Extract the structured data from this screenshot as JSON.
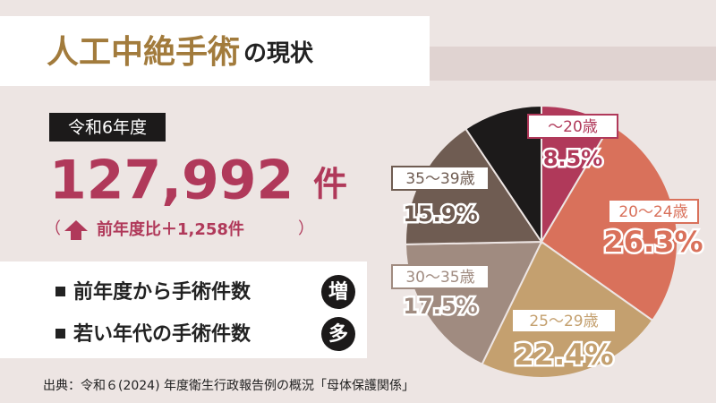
{
  "header": {
    "title": "人工中絶手術",
    "title_suffix": "の現状"
  },
  "summary": {
    "year": "令和6年度",
    "count": "127,992",
    "unit": "件",
    "change_open": "（",
    "change": "前年度比＋1,258件",
    "change_close": "）"
  },
  "bullets": [
    {
      "text": "前年度から手術件数",
      "badge": "増"
    },
    {
      "text": "若い年代の手術件数",
      "badge": "多"
    }
  ],
  "source": "出典：令和６(2024) 年度衛生行政報告例の概況「母体保護関係」",
  "chart_data": {
    "type": "pie",
    "categories": [
      "～20歳",
      "20～24歳",
      "25～29歳",
      "30～35歳",
      "35～39歳",
      null
    ],
    "values": [
      8.5,
      26.3,
      22.4,
      17.5,
      15.9,
      9.4
    ],
    "value_labels": [
      "8.5%",
      "26.3%",
      "22.4%",
      "17.5%",
      "15.9%",
      null
    ],
    "colors": [
      "#b0395a",
      "#d9715b",
      "#c4a06f",
      "#a08b80",
      "#6f5c52",
      "#1c1a1a"
    ]
  }
}
